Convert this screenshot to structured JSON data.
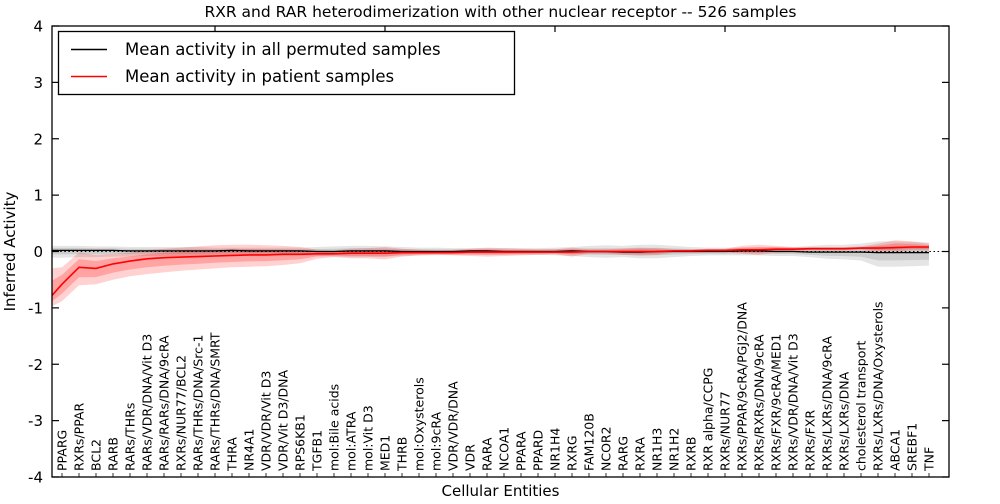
{
  "figure": {
    "ytick_labels": [
      "4",
      "3",
      "2",
      "1",
      "0",
      "-1",
      "-2",
      "-3",
      "-4"
    ],
    "legend": [
      {
        "label": "Mean activity in all permuted samples",
        "color": "#000000"
      },
      {
        "label": "Mean activity in patient samples",
        "color": "#ff0000"
      }
    ]
  },
  "chart_data": {
    "type": "line",
    "title": "RXR and RAR heterodimerization with other nuclear receptor -- 526 samples",
    "xlabel": "Cellular Entities",
    "ylabel": "Inferred Activity",
    "ylim": [
      -4,
      4
    ],
    "yticks": [
      4,
      3,
      2,
      1,
      0,
      -1,
      -2,
      -3,
      -4
    ],
    "grid": false,
    "legend_position": "upper left",
    "zero_line": {
      "y": 0,
      "style": "dotted",
      "color": "#000000"
    },
    "categories": [
      "PPARG",
      "RXRs/PPAR",
      "BCL2",
      "RARB",
      "RARs/THRs",
      "RARs/VDR/DNA/Vit D3",
      "RARs/RARs/DNA/9cRA",
      "RXRs/NUR77/BCL2",
      "RARs/THRs/DNA/Src-1",
      "RARs/THRs/DNA/SMRT",
      "THRA",
      "NR4A1",
      "VDR/VDR/Vit D3",
      "VDR/Vit D3/DNA",
      "RPS6KB1",
      "TGFB1",
      "mol:Bile acids",
      "mol:ATRA",
      "mol:Vit D3",
      "MED1",
      "THRB",
      "mol:Oxysterols",
      "mol:9cRA",
      "VDR/VDR/DNA",
      "VDR",
      "RARA",
      "NCOA1",
      "PPARA",
      "PPARD",
      "NR1H4",
      "RXRG",
      "FAM120B",
      "NCOR2",
      "RARG",
      "RXRA",
      "NR1H3",
      "NR1H2",
      "RXRB",
      "RXR alpha/CCPG",
      "RXRs/NUR77",
      "RXRs/PPAR/9cRA/PGJ2/DNA",
      "RXRs/RXRs/DNA/9cRA",
      "RXRs/FXR/9cRA/MED1",
      "RXRs/VDR/DNA/Vit D3",
      "RXRs/FXR",
      "RXRs/LXRs/DNA/9cRA",
      "RXRs/LXRs/DNA",
      "cholesterol transport",
      "RXRs/LXRs/DNA/Oxysterols",
      "ABCA1",
      "SREBF1",
      "TNF"
    ],
    "series": [
      {
        "name": "Mean activity in all permuted samples",
        "color": "#000000",
        "band_color": "#000000",
        "left_edge": {
          "value": 0.02,
          "upper": 0.1,
          "lower": -0.11
        },
        "values": [
          0.02,
          0.02,
          0.02,
          0.02,
          0.01,
          0.01,
          0.01,
          0.01,
          0.01,
          0.01,
          0.02,
          0.01,
          0.01,
          0.01,
          0.01,
          0.0,
          0.0,
          0.01,
          0.01,
          0.01,
          0.0,
          0.0,
          0.0,
          0.0,
          0.01,
          0.01,
          0.0,
          0.0,
          0.0,
          0.0,
          0.01,
          0.0,
          0.0,
          -0.01,
          -0.01,
          0.0,
          0.0,
          0.0,
          0.0,
          0.0,
          0.01,
          0.01,
          0.0,
          0.0,
          -0.01,
          -0.01,
          -0.01,
          -0.01,
          -0.02,
          -0.02,
          -0.02,
          -0.02
        ],
        "band_upper": [
          0.1,
          0.1,
          0.09,
          0.09,
          0.08,
          0.08,
          0.08,
          0.08,
          0.08,
          0.07,
          0.07,
          0.07,
          0.07,
          0.07,
          0.07,
          0.08,
          0.09,
          0.1,
          0.1,
          0.09,
          0.08,
          0.07,
          0.07,
          0.06,
          0.06,
          0.06,
          0.06,
          0.06,
          0.06,
          0.07,
          0.08,
          0.1,
          0.11,
          0.1,
          0.12,
          0.12,
          0.1,
          0.08,
          0.07,
          0.07,
          0.07,
          0.07,
          0.08,
          0.08,
          0.1,
          0.12,
          0.12,
          0.14,
          0.18,
          0.18,
          0.17,
          0.16
        ],
        "band_lower": [
          -0.11,
          -0.1,
          -0.1,
          -0.09,
          -0.09,
          -0.08,
          -0.08,
          -0.08,
          -0.08,
          -0.07,
          -0.07,
          -0.07,
          -0.07,
          -0.07,
          -0.07,
          -0.08,
          -0.09,
          -0.1,
          -0.1,
          -0.09,
          -0.08,
          -0.07,
          -0.07,
          -0.06,
          -0.06,
          -0.06,
          -0.06,
          -0.06,
          -0.06,
          -0.07,
          -0.08,
          -0.1,
          -0.11,
          -0.1,
          -0.12,
          -0.12,
          -0.1,
          -0.08,
          -0.07,
          -0.07,
          -0.07,
          -0.07,
          -0.08,
          -0.08,
          -0.1,
          -0.13,
          -0.14,
          -0.16,
          -0.27,
          -0.27,
          -0.26,
          -0.25
        ]
      },
      {
        "name": "Mean activity in patient samples",
        "color": "#ff0000",
        "band_color": "#ff0000",
        "left_edge": {
          "value": -0.78,
          "upper": -0.3,
          "lower": -0.97
        },
        "values": [
          -0.58,
          -0.28,
          -0.3,
          -0.22,
          -0.17,
          -0.13,
          -0.11,
          -0.1,
          -0.09,
          -0.08,
          -0.07,
          -0.06,
          -0.06,
          -0.05,
          -0.05,
          -0.04,
          -0.04,
          -0.03,
          -0.03,
          -0.03,
          -0.02,
          -0.02,
          -0.02,
          -0.02,
          -0.01,
          -0.01,
          -0.01,
          -0.01,
          -0.01,
          -0.01,
          -0.01,
          0.0,
          0.0,
          0.0,
          0.0,
          0.0,
          0.01,
          0.01,
          0.02,
          0.02,
          0.03,
          0.03,
          0.04,
          0.04,
          0.05,
          0.05,
          0.05,
          0.06,
          0.06,
          0.07,
          0.08,
          0.08
        ],
        "band_upper": [
          -0.28,
          -0.02,
          -0.06,
          -0.04,
          -0.02,
          0.02,
          0.05,
          0.07,
          0.09,
          0.11,
          0.12,
          0.12,
          0.11,
          0.1,
          0.08,
          0.03,
          0.02,
          0.05,
          0.06,
          0.08,
          0.05,
          0.03,
          0.02,
          0.03,
          0.05,
          0.07,
          0.06,
          0.05,
          0.04,
          0.04,
          0.07,
          0.04,
          0.04,
          0.06,
          0.07,
          0.06,
          0.04,
          0.04,
          0.05,
          0.05,
          0.1,
          0.12,
          0.1,
          0.08,
          0.08,
          0.08,
          0.08,
          0.09,
          0.14,
          0.2,
          0.18,
          0.14
        ],
        "band_lower": [
          -0.88,
          -0.6,
          -0.58,
          -0.5,
          -0.44,
          -0.4,
          -0.37,
          -0.34,
          -0.32,
          -0.3,
          -0.28,
          -0.27,
          -0.26,
          -0.24,
          -0.21,
          -0.13,
          -0.1,
          -0.12,
          -0.12,
          -0.14,
          -0.09,
          -0.07,
          -0.06,
          -0.07,
          -0.08,
          -0.09,
          -0.08,
          -0.07,
          -0.06,
          -0.05,
          -0.09,
          -0.04,
          -0.04,
          -0.06,
          -0.07,
          -0.06,
          -0.02,
          -0.02,
          -0.01,
          -0.01,
          -0.04,
          -0.06,
          -0.02,
          0.0,
          0.02,
          0.02,
          0.02,
          0.03,
          0.0,
          0.0,
          0.02,
          0.02
        ]
      }
    ]
  }
}
